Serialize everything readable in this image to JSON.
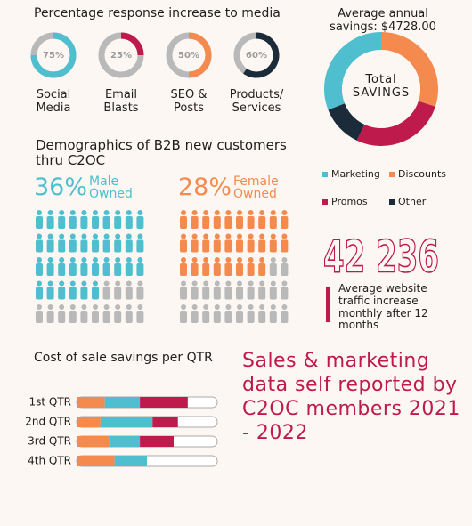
{
  "media": {
    "type": "donut",
    "title": "Percentage response increase to media",
    "categories": [
      "Social Media",
      "Email Blasts",
      "SEO & Posts",
      "Products/ Services"
    ],
    "values": [
      75,
      25,
      50,
      60
    ],
    "value_labels": [
      "75%",
      "25%",
      "50%",
      "60%"
    ],
    "colors": [
      "#4fbfcf",
      "#bf1a4c",
      "#f58a4f",
      "#1b2b3a"
    ],
    "track_color": "#b9b9b9"
  },
  "savings": {
    "type": "pie",
    "title": "Average annual savings: $4728.00",
    "center_label": "Total SAVINGS",
    "categories": [
      "Marketing",
      "Discounts",
      "Promos",
      "Other"
    ],
    "values": [
      31,
      30,
      27,
      12
    ],
    "colors": [
      "#4fbfcf",
      "#f58a4f",
      "#bf1a4c",
      "#1b2b3a"
    ]
  },
  "demographics": {
    "type": "pictogram",
    "title": "Demographics of B2B new customers thru C2OC",
    "groups": [
      {
        "name": "Male Owned",
        "value": 36,
        "value_label": "36%",
        "color": "#4fbfcf"
      },
      {
        "name": "Female Owned",
        "value": 28,
        "value_label": "28%",
        "color": "#f58a4f"
      }
    ],
    "empty_color": "#b9b9b9"
  },
  "traffic": {
    "headline": "42 236",
    "caption": "Average website traffic increase monthly after 12 months"
  },
  "cost": {
    "type": "stacked_bar",
    "title": "Cost of sale savings per QTR",
    "categories": [
      "1st QTR",
      "2nd QTR",
      "3rd QTR",
      "4th QTR"
    ],
    "xlim": [
      0,
      100
    ],
    "series": [
      {
        "color": "#f58a4f",
        "values": [
          20,
          17,
          23,
          27
        ]
      },
      {
        "color": "#4fbfcf",
        "values": [
          25,
          37,
          22,
          23
        ]
      },
      {
        "color": "#bf1a4c",
        "values": [
          34,
          18,
          24,
          0
        ]
      }
    ]
  },
  "footer": "Sales & marketing data self reported by C2OC members 2021 - 2022"
}
